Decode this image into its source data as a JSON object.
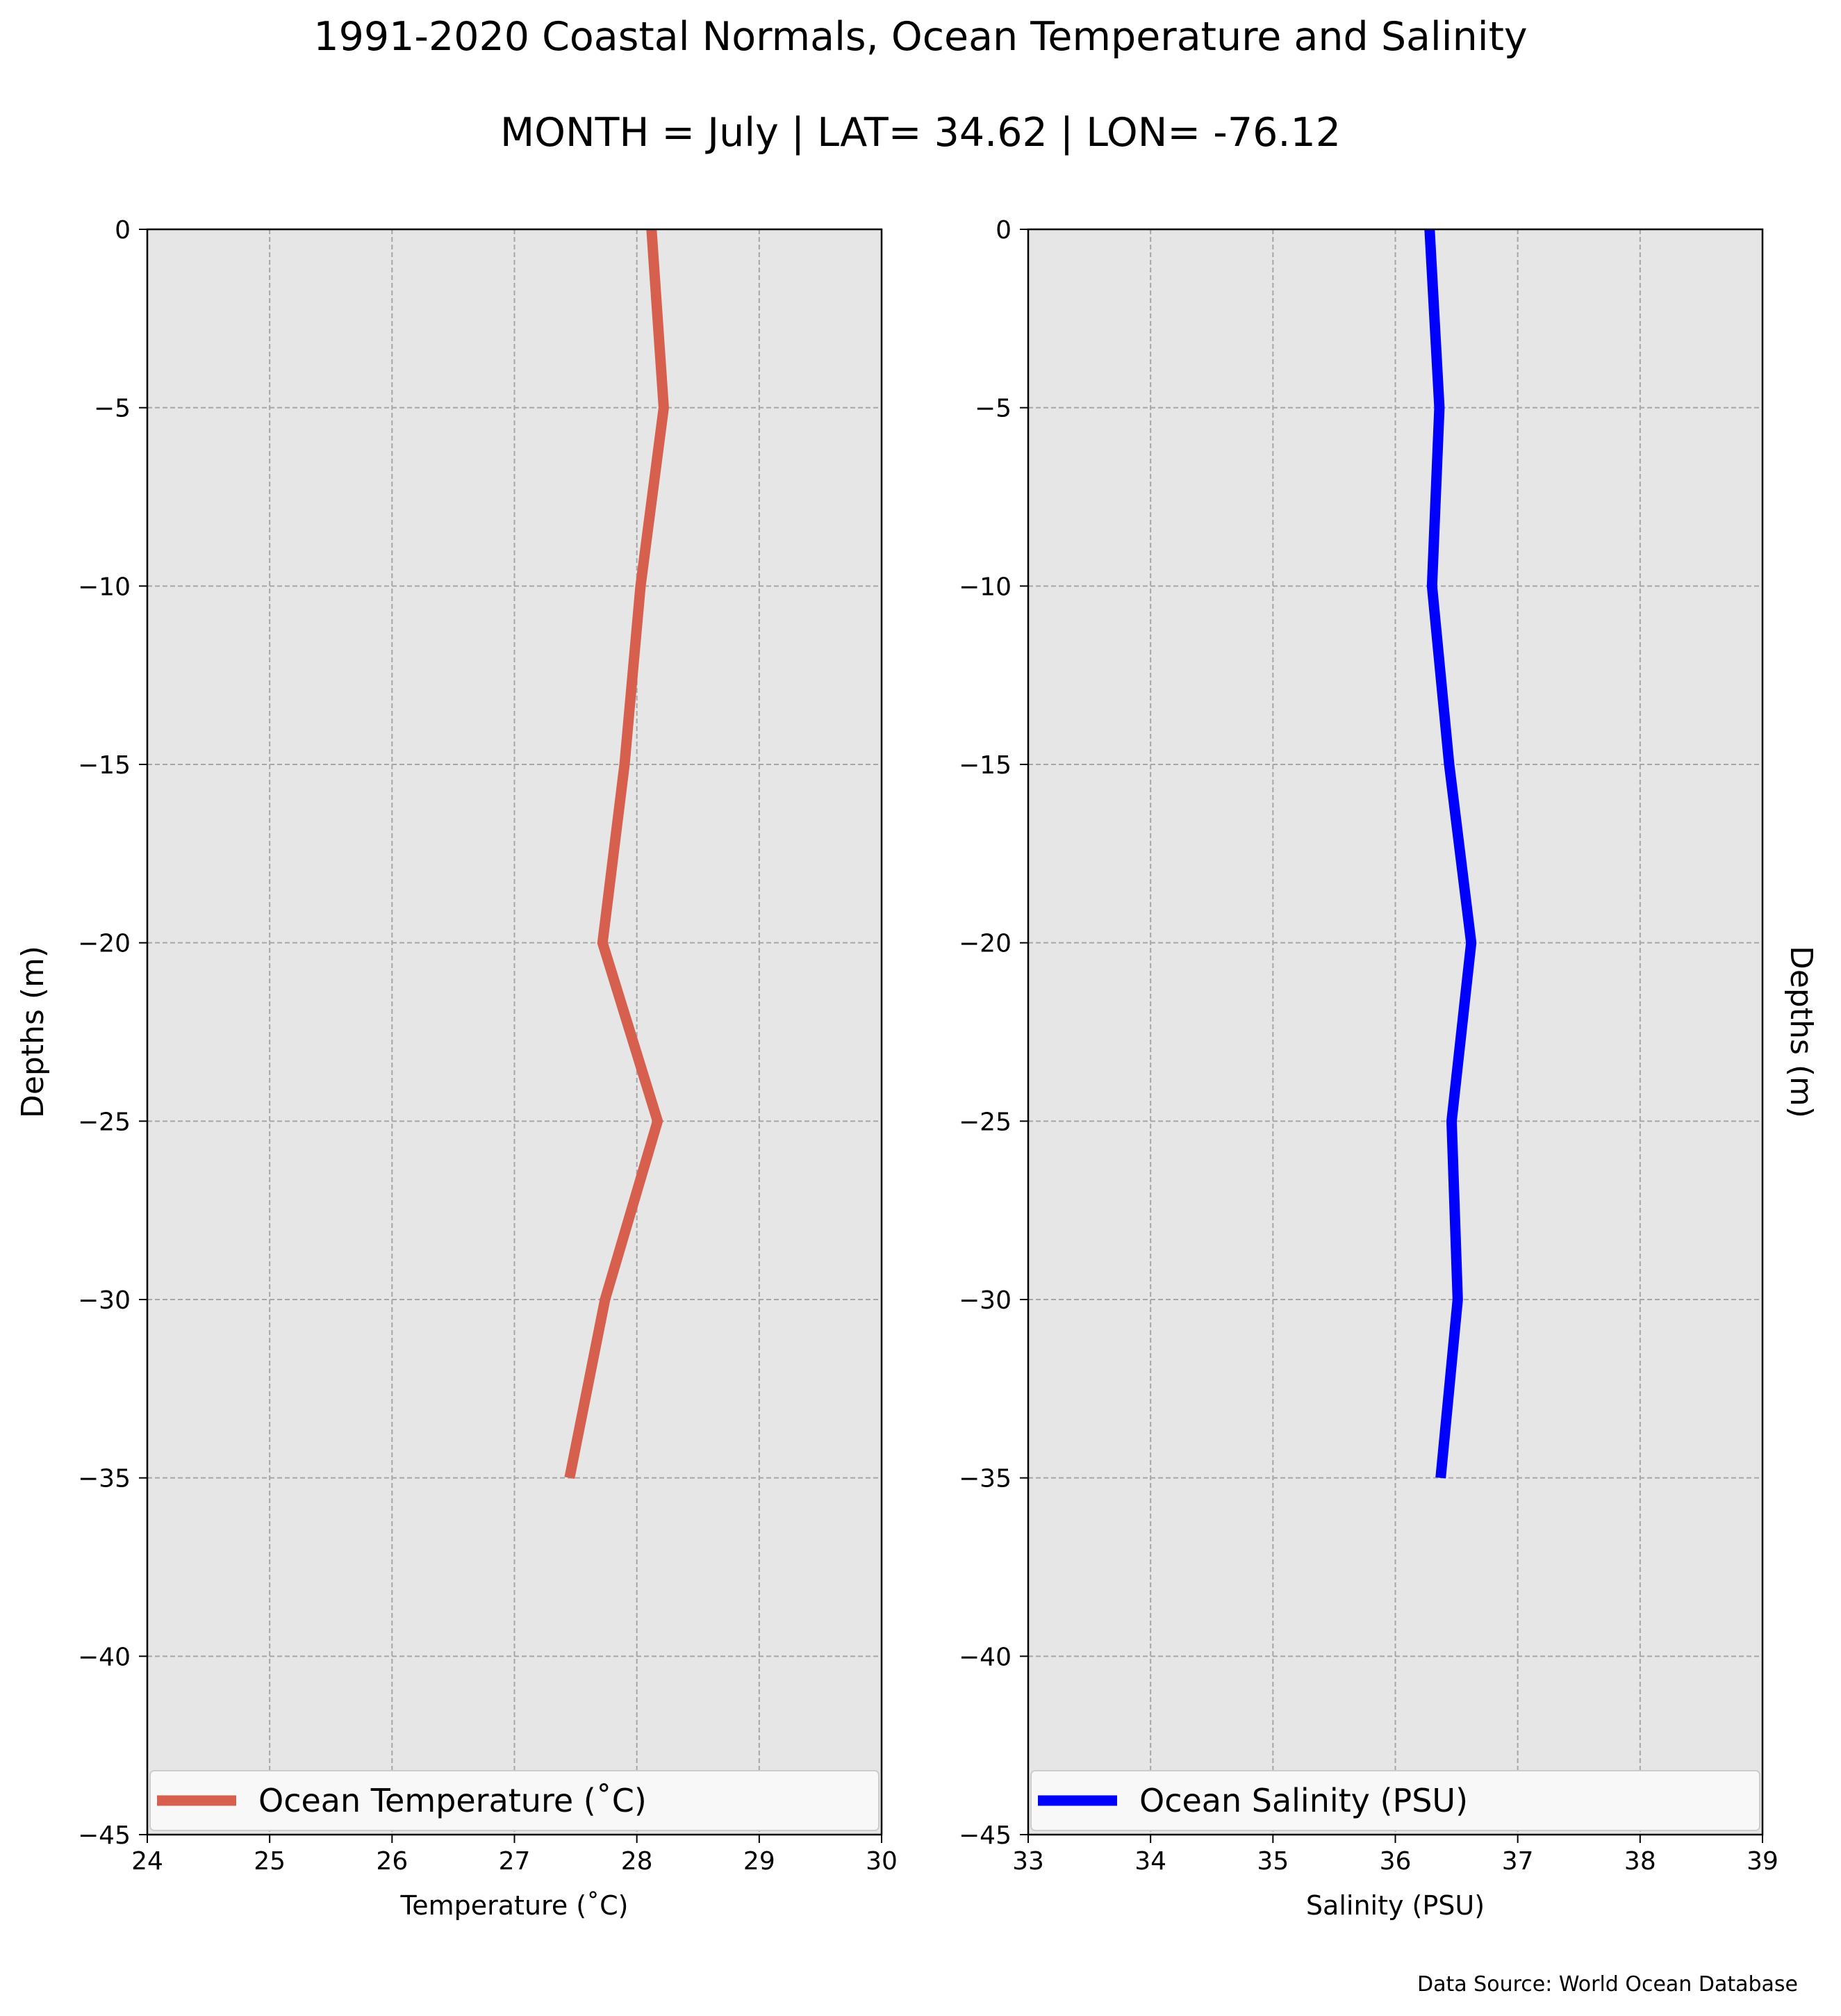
{
  "title": "1991-2020 Coastal Normals, Ocean Temperature and Salinity",
  "subtitle": "MONTH = July | LAT= 34.62 | LON= -76.12",
  "source": "Data Source: World Ocean Database",
  "chart_data": [
    {
      "type": "line",
      "title": "",
      "xlabel": "Temperature ($^\\circ$C)",
      "xlabel_display": "Temperature (˚C)",
      "ylabel": "Depths (m)",
      "xlim": [
        24,
        30
      ],
      "ylim": [
        -45,
        0
      ],
      "xticks": [
        "24",
        "25",
        "26",
        "27",
        "28",
        "29",
        "30"
      ],
      "yticks": [
        "0",
        "-5",
        "-10",
        "-15",
        "-20",
        "-25",
        "-30",
        "-35",
        "-40",
        "-45"
      ],
      "grid": true,
      "legend_position": "bottom",
      "series": [
        {
          "name": "Ocean Temperature (˚C)",
          "color": "#d65f4d",
          "x": [
            28.12,
            28.22,
            28.03,
            27.9,
            27.72,
            28.17,
            27.74,
            27.45
          ],
          "y": [
            0,
            -5,
            -10,
            -15,
            -20,
            -25,
            -30,
            -35
          ]
        }
      ]
    },
    {
      "type": "line",
      "title": "",
      "xlabel": "Salinity (PSU)",
      "ylabel": "Depths (m)",
      "ylabel_side": "right",
      "xlim": [
        33,
        39
      ],
      "ylim": [
        -45,
        0
      ],
      "xticks": [
        "33",
        "34",
        "35",
        "36",
        "37",
        "38",
        "39"
      ],
      "yticks": [
        "0",
        "-5",
        "-10",
        "-15",
        "-20",
        "-25",
        "-30",
        "-35",
        "-40",
        "-45"
      ],
      "grid": true,
      "legend_position": "bottom",
      "series": [
        {
          "name": "Ocean Salinity (PSU)",
          "color": "#0000ff",
          "x": [
            36.28,
            36.36,
            36.3,
            36.44,
            36.62,
            36.46,
            36.51,
            36.37
          ],
          "y": [
            0,
            -5,
            -10,
            -15,
            -20,
            -25,
            -30,
            -35
          ]
        }
      ]
    }
  ],
  "colors": {
    "plot_background": "#e6e6e6",
    "grid": "#a6a6a6"
  }
}
